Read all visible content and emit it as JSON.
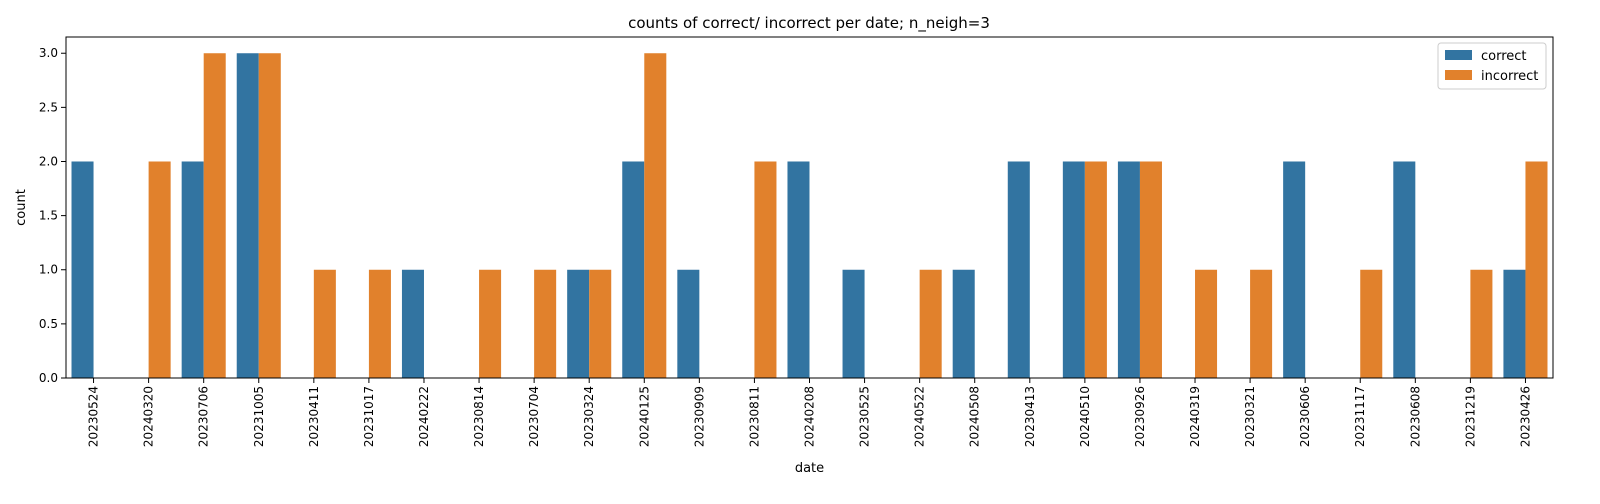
{
  "chart_data": {
    "type": "bar",
    "title": "counts of correct/ incorrect per date; n_neigh=3",
    "xlabel": "date",
    "ylabel": "count",
    "ylim": [
      0,
      3.15
    ],
    "yticks": [
      "0.0",
      "0.5",
      "1.0",
      "1.5",
      "2.0",
      "2.5",
      "3.0"
    ],
    "grid": false,
    "legend_position": "top-right",
    "categories": [
      "20230524",
      "20240320",
      "20230706",
      "20231005",
      "20230411",
      "20231017",
      "20240222",
      "20230814",
      "20230704",
      "20230324",
      "20240125",
      "20230909",
      "20230811",
      "20240208",
      "20230525",
      "20240522",
      "20240508",
      "20230413",
      "20240510",
      "20230926",
      "20240319",
      "20230321",
      "20230606",
      "20231117",
      "20230608",
      "20231219",
      "20230426"
    ],
    "series": [
      {
        "name": "correct",
        "color": "#3274a1",
        "values": [
          2,
          0,
          2,
          3,
          0,
          0,
          1,
          0,
          0,
          1,
          2,
          1,
          0,
          2,
          1,
          0,
          1,
          2,
          2,
          2,
          0,
          0,
          2,
          0,
          2,
          0,
          1
        ]
      },
      {
        "name": "incorrect",
        "color": "#e1812c",
        "values": [
          0,
          2,
          3,
          3,
          1,
          1,
          0,
          1,
          1,
          1,
          3,
          0,
          2,
          0,
          0,
          1,
          0,
          0,
          2,
          2,
          1,
          1,
          0,
          1,
          0,
          1,
          2
        ]
      }
    ]
  }
}
